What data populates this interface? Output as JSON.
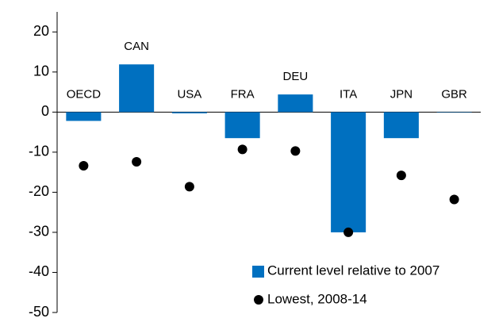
{
  "chart_data": {
    "type": "bar",
    "categories": [
      "OECD",
      "CAN",
      "USA",
      "FRA",
      "DEU",
      "ITA",
      "JPN",
      "GBR"
    ],
    "series": [
      {
        "name": "Current level relative to 2007",
        "type": "bar",
        "color": "#0070c0",
        "values": [
          -2.2,
          11.9,
          -0.3,
          -6.5,
          4.4,
          -30,
          -6.5,
          -0.1
        ]
      },
      {
        "name": "Lowest, 2008-14",
        "type": "scatter",
        "color": "#000000",
        "values": [
          -13.4,
          -12.4,
          -18.6,
          -9.3,
          -9.7,
          -30,
          -15.8,
          -21.8
        ]
      }
    ],
    "ylim": [
      -50,
      25
    ],
    "yticks": [
      -50,
      -40,
      -30,
      -20,
      -10,
      0,
      10,
      20
    ],
    "grid": false,
    "legend": "bottom-right"
  }
}
